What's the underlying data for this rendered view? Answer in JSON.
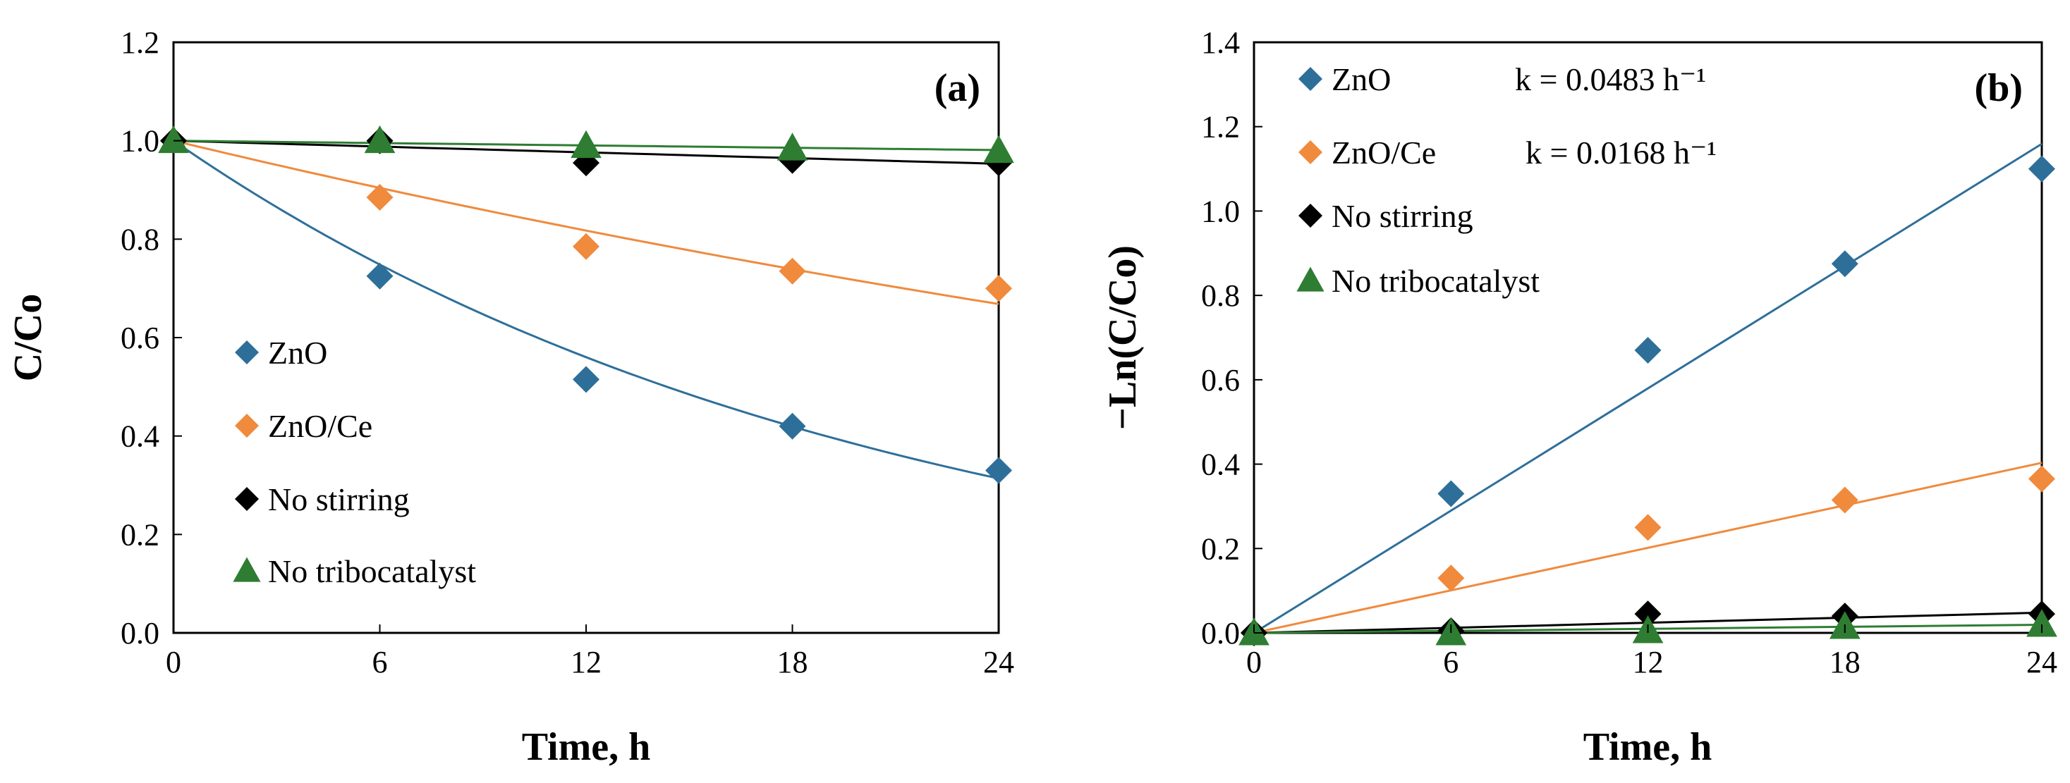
{
  "chart_data": [
    {
      "type": "scatter",
      "panel_label": "(a)",
      "xlabel": "Time, h",
      "ylabel": "C/Co",
      "xlim": [
        0,
        24
      ],
      "ylim": [
        0,
        1.2
      ],
      "xticks": [
        0,
        6,
        12,
        18,
        24
      ],
      "yticks": [
        0,
        0.2,
        0.4,
        0.6,
        0.8,
        1.0,
        1.2
      ],
      "ytick_labels": [
        "0.0",
        "0.2",
        "0.4",
        "0.6",
        "0.8",
        "1.0",
        "1.2"
      ],
      "grid": false,
      "legend_position": "bottom-left",
      "series": [
        {
          "name": "ZnO",
          "color": "#2e6f9a",
          "marker": "diamond",
          "x": [
            0,
            6,
            12,
            18,
            24
          ],
          "y": [
            1.0,
            0.725,
            0.515,
            0.42,
            0.33
          ],
          "fit": "exp",
          "k": 0.0483
        },
        {
          "name": "ZnO/Ce",
          "color": "#f08a3c",
          "marker": "diamond",
          "x": [
            0,
            6,
            12,
            18,
            24
          ],
          "y": [
            1.0,
            0.885,
            0.785,
            0.735,
            0.7
          ],
          "fit": "exp",
          "k": 0.0168
        },
        {
          "name": "No stirring",
          "color": "#000000",
          "marker": "diamond",
          "x": [
            0,
            6,
            12,
            18,
            24
          ],
          "y": [
            1.0,
            1.0,
            0.955,
            0.96,
            0.955
          ],
          "fit": "exp",
          "k": 0.002
        },
        {
          "name": "No tribocatalyst",
          "color": "#2e7d32",
          "marker": "triangle",
          "x": [
            0,
            6,
            12,
            18,
            24
          ],
          "y": [
            1.0,
            1.0,
            0.99,
            0.985,
            0.98
          ],
          "fit": "exp",
          "k": 0.0008
        }
      ]
    },
    {
      "type": "scatter",
      "panel_label": "(b)",
      "xlabel": "Time, h",
      "ylabel": "−Ln(C/Co)",
      "xlim": [
        0,
        24
      ],
      "ylim": [
        0,
        1.4
      ],
      "xticks": [
        0,
        6,
        12,
        18,
        24
      ],
      "yticks": [
        0,
        0.2,
        0.4,
        0.6,
        0.8,
        1.0,
        1.2,
        1.4
      ],
      "ytick_labels": [
        "0.0",
        "0.2",
        "0.4",
        "0.6",
        "0.8",
        "1.0",
        "1.2",
        "1.4"
      ],
      "grid": false,
      "legend_position": "top-left",
      "legend_annotations": [
        "k = 0.0483  h⁻¹",
        "k = 0.0168  h⁻¹",
        "",
        ""
      ],
      "series": [
        {
          "name": "ZnO",
          "color": "#2e6f9a",
          "marker": "diamond",
          "x": [
            0,
            6,
            12,
            18,
            24
          ],
          "y": [
            0.0,
            0.33,
            0.67,
            0.875,
            1.1
          ],
          "fit": "linear",
          "k": 0.0483
        },
        {
          "name": "ZnO/Ce",
          "color": "#f08a3c",
          "marker": "diamond",
          "x": [
            0,
            6,
            12,
            18,
            24
          ],
          "y": [
            0.0,
            0.13,
            0.25,
            0.315,
            0.365
          ],
          "fit": "linear",
          "k": 0.0168
        },
        {
          "name": "No stirring",
          "color": "#000000",
          "marker": "diamond",
          "x": [
            0,
            6,
            12,
            18,
            24
          ],
          "y": [
            0.0,
            0.005,
            0.045,
            0.04,
            0.045
          ],
          "fit": "linear",
          "k": 0.002
        },
        {
          "name": "No tribocatalyst",
          "color": "#2e7d32",
          "marker": "triangle",
          "x": [
            0,
            6,
            12,
            18,
            24
          ],
          "y": [
            0.0,
            0.0,
            0.005,
            0.015,
            0.02
          ],
          "fit": "linear",
          "k": 0.0008
        }
      ]
    }
  ]
}
